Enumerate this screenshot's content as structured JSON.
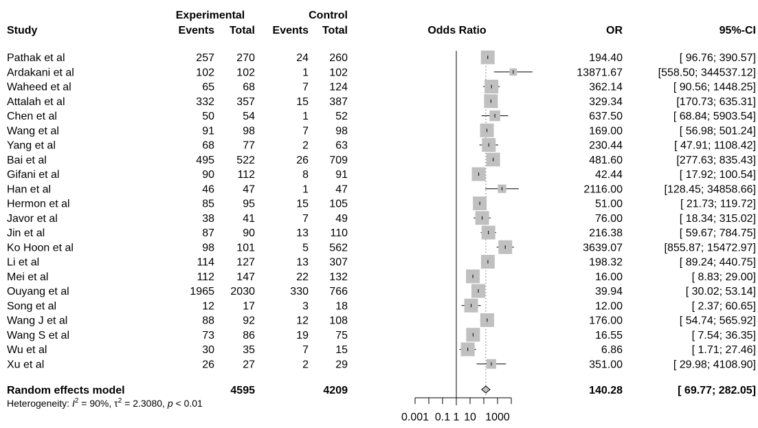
{
  "chart_data": {
    "type": "forest",
    "headers": {
      "study": "Study",
      "experimental": "Experimental",
      "control": "Control",
      "events": "Events",
      "total": "Total",
      "odds_ratio": "Odds Ratio",
      "or": "OR",
      "ci": "95%-CI"
    },
    "x_scale": "log",
    "xlim": [
      0.001,
      10000
    ],
    "x_ticks": [
      0.001,
      0.1,
      1,
      10,
      1000
    ],
    "x_tick_labels": [
      "0.001",
      "0.1",
      "1",
      "10",
      "1000"
    ],
    "null_line": 1,
    "studies": [
      {
        "name": "Pathak et al",
        "e_events": "257",
        "e_total": "270",
        "c_events": "24",
        "c_total": "260",
        "or": 194.4,
        "lower": 96.76,
        "upper": 390.57,
        "or_text": "194.40",
        "ci_text": "[ 96.76;    390.57]"
      },
      {
        "name": "Ardakani et al",
        "e_events": "102",
        "e_total": "102",
        "c_events": "1",
        "c_total": "102",
        "or": 13871.67,
        "lower": 558.5,
        "upper": 344537.12,
        "or_text": "13871.67",
        "ci_text": "[558.50; 344537.12]"
      },
      {
        "name": "Waheed et al",
        "e_events": "65",
        "e_total": "68",
        "c_events": "7",
        "c_total": "124",
        "or": 362.14,
        "lower": 90.56,
        "upper": 1448.25,
        "or_text": "362.14",
        "ci_text": "[ 90.56;    1448.25]"
      },
      {
        "name": "Attalah et al",
        "e_events": "332",
        "e_total": "357",
        "c_events": "15",
        "c_total": "387",
        "or": 329.34,
        "lower": 170.73,
        "upper": 635.31,
        "or_text": "329.34",
        "ci_text": "[170.73;    635.31]"
      },
      {
        "name": "Chen et al",
        "e_events": "50",
        "e_total": "54",
        "c_events": "1",
        "c_total": "52",
        "or": 637.5,
        "lower": 68.84,
        "upper": 5903.54,
        "or_text": "637.50",
        "ci_text": "[ 68.84;    5903.54]"
      },
      {
        "name": "Wang et al",
        "e_events": "91",
        "e_total": "98",
        "c_events": "7",
        "c_total": "98",
        "or": 169.0,
        "lower": 56.98,
        "upper": 501.24,
        "or_text": "169.00",
        "ci_text": "[ 56.98;    501.24]"
      },
      {
        "name": "Yang  et al",
        "e_events": "68",
        "e_total": "77",
        "c_events": "2",
        "c_total": "63",
        "or": 230.44,
        "lower": 47.91,
        "upper": 1108.42,
        "or_text": "230.44",
        "ci_text": "[ 47.91;    1108.42]"
      },
      {
        "name": "Bai et al",
        "e_events": "495",
        "e_total": "522",
        "c_events": "26",
        "c_total": "709",
        "or": 481.6,
        "lower": 277.63,
        "upper": 835.43,
        "or_text": "481.60",
        "ci_text": "[277.63;    835.43]"
      },
      {
        "name": "Gifani et al",
        "e_events": "90",
        "e_total": "112",
        "c_events": "8",
        "c_total": "91",
        "or": 42.44,
        "lower": 17.92,
        "upper": 100.54,
        "or_text": "42.44",
        "ci_text": "[ 17.92;    100.54]"
      },
      {
        "name": "Han et al",
        "e_events": "46",
        "e_total": "47",
        "c_events": "1",
        "c_total": "47",
        "or": 2116.0,
        "lower": 128.45,
        "upper": 34858.66,
        "or_text": "2116.00",
        "ci_text": "[128.45;  34858.66]"
      },
      {
        "name": "Hermon et al",
        "e_events": "85",
        "e_total": "95",
        "c_events": "15",
        "c_total": "105",
        "or": 51.0,
        "lower": 21.73,
        "upper": 119.72,
        "or_text": "51.00",
        "ci_text": "[ 21.73;    119.72]"
      },
      {
        "name": "Javor et al",
        "e_events": "38",
        "e_total": "41",
        "c_events": "7",
        "c_total": "49",
        "or": 76.0,
        "lower": 18.34,
        "upper": 315.02,
        "or_text": "76.00",
        "ci_text": "[ 18.34;    315.02]"
      },
      {
        "name": "Jin et al",
        "e_events": "87",
        "e_total": "90",
        "c_events": "13",
        "c_total": "110",
        "or": 216.38,
        "lower": 59.67,
        "upper": 784.75,
        "or_text": "216.38",
        "ci_text": "[ 59.67;    784.75]"
      },
      {
        "name": "Ko Hoon et al",
        "e_events": "98",
        "e_total": "101",
        "c_events": "5",
        "c_total": "562",
        "or": 3639.07,
        "lower": 855.87,
        "upper": 15472.97,
        "or_text": "3639.07",
        "ci_text": "[855.87;  15472.97]"
      },
      {
        "name": "Li et al",
        "e_events": "114",
        "e_total": "127",
        "c_events": "13",
        "c_total": "307",
        "or": 198.32,
        "lower": 89.24,
        "upper": 440.75,
        "or_text": "198.32",
        "ci_text": "[ 89.24;    440.75]"
      },
      {
        "name": "Mei et al",
        "e_events": "112",
        "e_total": "147",
        "c_events": "22",
        "c_total": "132",
        "or": 16.0,
        "lower": 8.83,
        "upper": 29.0,
        "or_text": "16.00",
        "ci_text": "[  8.83;      29.00]"
      },
      {
        "name": "Ouyang et al",
        "e_events": "1965",
        "e_total": "2030",
        "c_events": "330",
        "c_total": "766",
        "or": 39.94,
        "lower": 30.02,
        "upper": 53.14,
        "or_text": "39.94",
        "ci_text": "[ 30.02;      53.14]"
      },
      {
        "name": "Song et al",
        "e_events": "12",
        "e_total": "17",
        "c_events": "3",
        "c_total": "18",
        "or": 12.0,
        "lower": 2.37,
        "upper": 60.65,
        "or_text": "12.00",
        "ci_text": "[  2.37;      60.65]"
      },
      {
        "name": "Wang J et al",
        "e_events": "88",
        "e_total": "92",
        "c_events": "12",
        "c_total": "108",
        "or": 176.0,
        "lower": 54.74,
        "upper": 565.92,
        "or_text": "176.00",
        "ci_text": "[ 54.74;    565.92]"
      },
      {
        "name": "Wang S et al",
        "e_events": "73",
        "e_total": "86",
        "c_events": "19",
        "c_total": "75",
        "or": 16.55,
        "lower": 7.54,
        "upper": 36.35,
        "or_text": "16.55",
        "ci_text": "[  7.54;      36.35]"
      },
      {
        "name": "Wu et al",
        "e_events": "30",
        "e_total": "35",
        "c_events": "7",
        "c_total": "15",
        "or": 6.86,
        "lower": 1.71,
        "upper": 27.46,
        "or_text": "6.86",
        "ci_text": "[  1.71;      27.46]"
      },
      {
        "name": "Xu et al",
        "e_events": "26",
        "e_total": "27",
        "c_events": "2",
        "c_total": "29",
        "or": 351.0,
        "lower": 29.98,
        "upper": 4108.9,
        "or_text": "351.00",
        "ci_text": "[ 29.98;    4108.90]"
      }
    ],
    "summary": {
      "label": "Random effects model",
      "e_total": "4595",
      "c_total": "4209",
      "or": 140.28,
      "lower": 69.77,
      "upper": 282.05,
      "or_text": "140.28",
      "ci_text": "[ 69.77;    282.05]"
    },
    "heterogeneity": {
      "prefix": "Heterogeneity: ",
      "i2_symbol": "I",
      "i2_exp": "2",
      "i2_value": " = 90%, ",
      "tau_symbol": "τ",
      "tau_exp": "2",
      "tau_value": " = 2.3080, ",
      "p_symbol": "p",
      "p_value": " < 0.01"
    },
    "colors": {
      "box": "#c0c0c0",
      "line": "#000000",
      "diamond": "#c0c0c0",
      "reference": "#808080"
    }
  }
}
